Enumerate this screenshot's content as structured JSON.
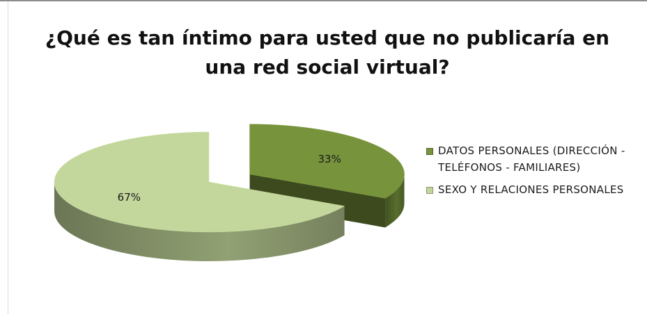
{
  "chart_data": {
    "type": "pie",
    "title": "¿Qué es tan íntimo para usted que no publicaría en una red social virtual?",
    "legend_position": "right",
    "slices": [
      {
        "label": "DATOS PERSONALES (DIRECCIÓN - TELÉFONOS - FAMILIARES)",
        "value": 33,
        "value_label": "33%",
        "color": "#77933c",
        "exploded": true
      },
      {
        "label": "SEXO Y RELACIONES PERSONALES",
        "value": 67,
        "value_label": "67%",
        "color": "#c3d69b",
        "exploded": false
      }
    ]
  }
}
